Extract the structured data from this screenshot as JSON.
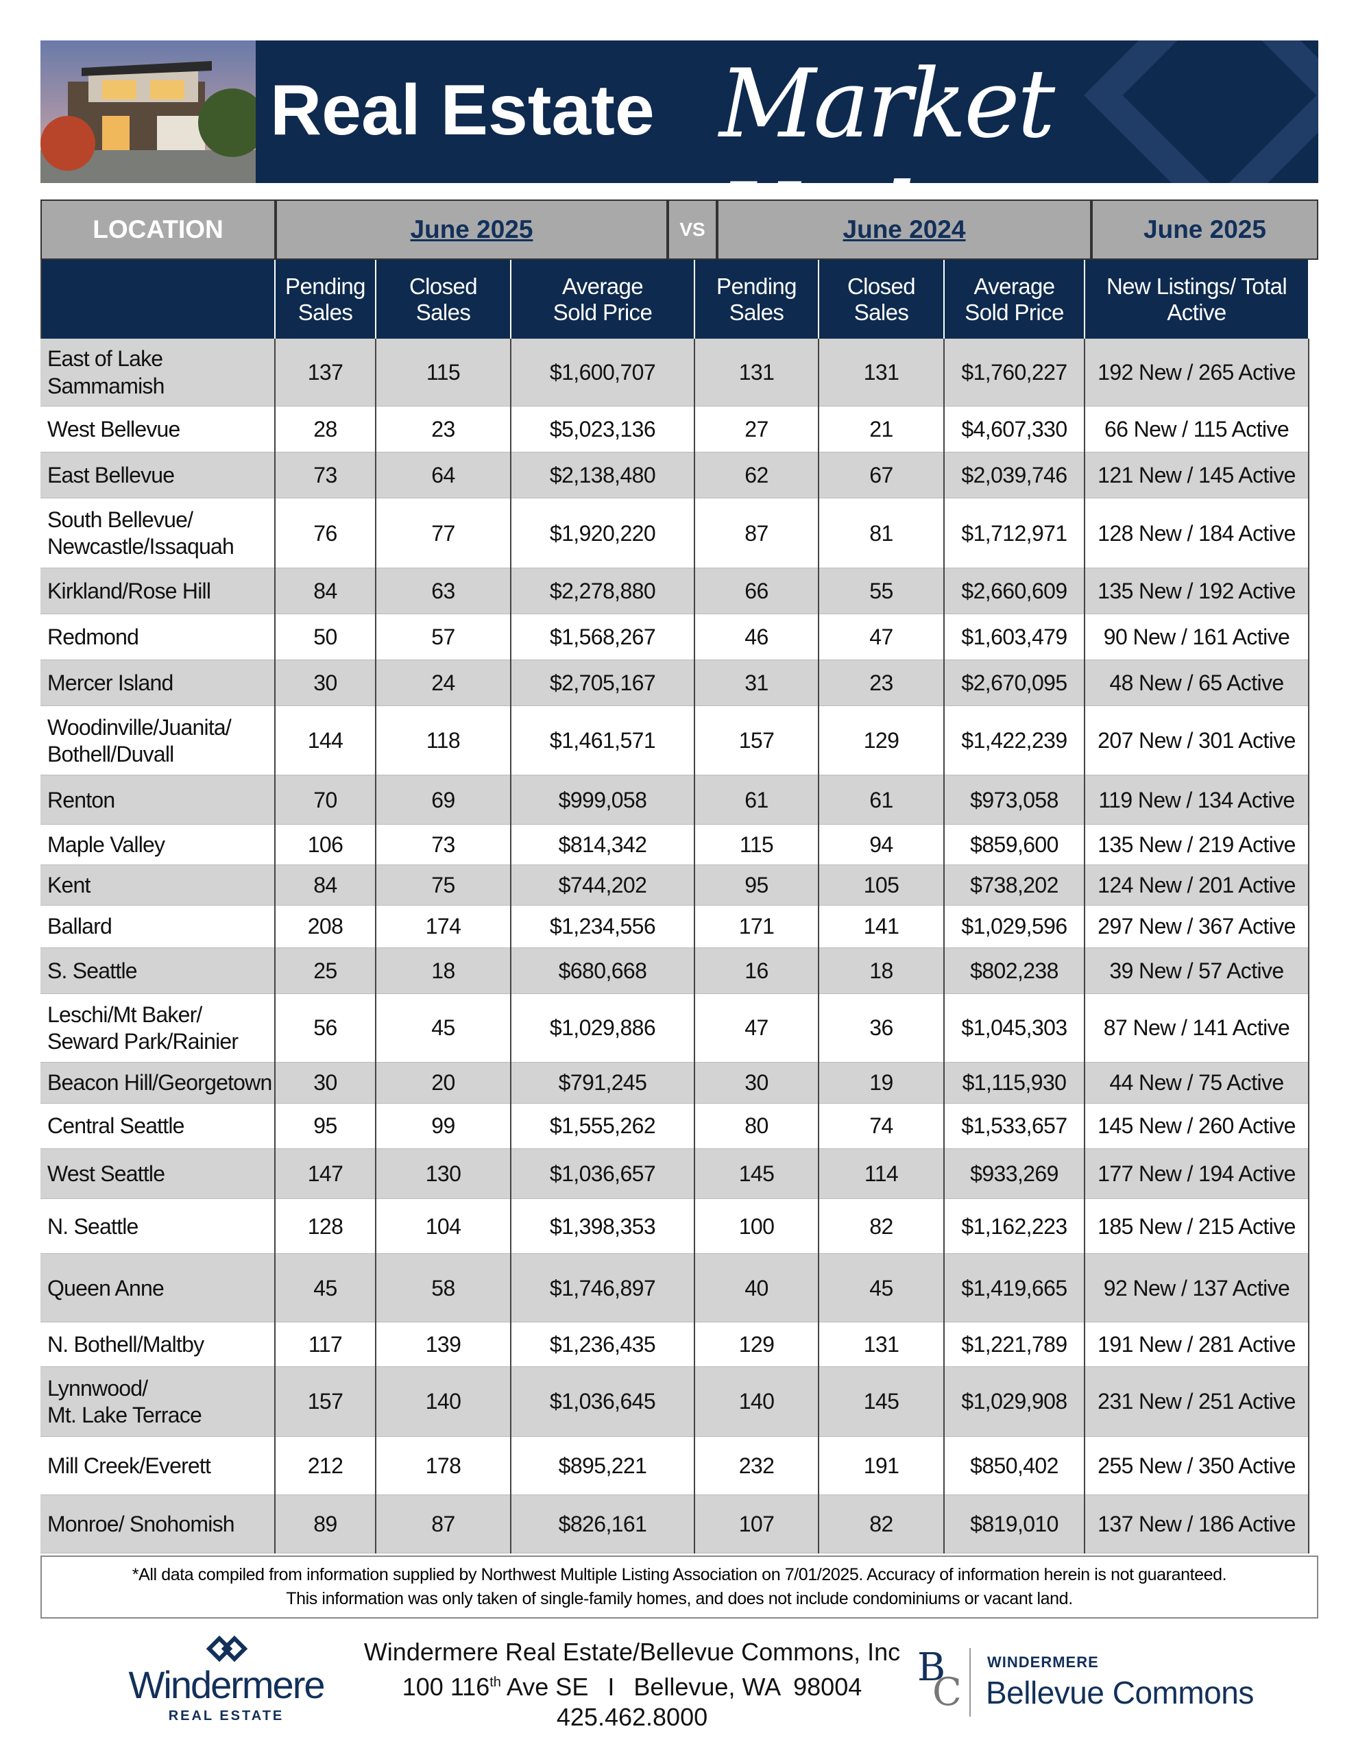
{
  "header": {
    "title": "Real Estate",
    "script_title": "Market Update"
  },
  "table": {
    "group_headers": [
      "LOCATION",
      "June 2025",
      "VS",
      "June 2024",
      "June 2025"
    ],
    "column_headers": [
      "",
      "Pending\nSales",
      "Closed\nSales",
      "Average\nSold Price",
      "Pending\nSales",
      "Closed\nSales",
      "Average\nSold Price",
      "New Listings/ Total\nActive"
    ],
    "rows": [
      [
        "East of Lake\nSammamish",
        137,
        115,
        "$1,600,707",
        131,
        131,
        "$1,760,227",
        "192 New / 265 Active"
      ],
      [
        "West Bellevue",
        28,
        23,
        "$5,023,136",
        27,
        21,
        "$4,607,330",
        "66 New / 115 Active"
      ],
      [
        "East Bellevue",
        73,
        64,
        "$2,138,480",
        62,
        67,
        "$2,039,746",
        "121 New / 145 Active"
      ],
      [
        "South Bellevue/\nNewcastle/Issaquah",
        76,
        77,
        "$1,920,220",
        87,
        81,
        "$1,712,971",
        "128 New / 184 Active"
      ],
      [
        "Kirkland/Rose Hill",
        84,
        63,
        "$2,278,880",
        66,
        55,
        "$2,660,609",
        "135 New / 192 Active"
      ],
      [
        "Redmond",
        50,
        57,
        "$1,568,267",
        46,
        47,
        "$1,603,479",
        "90 New / 161 Active"
      ],
      [
        "Mercer Island",
        30,
        24,
        "$2,705,167",
        31,
        23,
        "$2,670,095",
        "48 New / 65 Active"
      ],
      [
        "Woodinville/Juanita/\nBothell/Duvall",
        144,
        118,
        "$1,461,571",
        157,
        129,
        "$1,422,239",
        "207 New / 301 Active"
      ],
      [
        "Renton",
        70,
        69,
        "$999,058",
        61,
        61,
        "$973,058",
        "119 New / 134 Active"
      ],
      [
        "Maple Valley",
        106,
        73,
        "$814,342",
        115,
        94,
        "$859,600",
        "135 New / 219 Active"
      ],
      [
        "Kent",
        84,
        75,
        "$744,202",
        95,
        105,
        "$738,202",
        "124 New / 201 Active"
      ],
      [
        "Ballard",
        208,
        174,
        "$1,234,556",
        171,
        141,
        "$1,029,596",
        "297 New / 367 Active"
      ],
      [
        "S. Seattle",
        25,
        18,
        "$680,668",
        16,
        18,
        "$802,238",
        "39 New / 57 Active"
      ],
      [
        "Leschi/Mt Baker/\nSeward Park/Rainier",
        56,
        45,
        "$1,029,886",
        47,
        36,
        "$1,045,303",
        "87 New / 141 Active"
      ],
      [
        "Beacon Hill/Georgetown",
        30,
        20,
        "$791,245",
        30,
        19,
        "$1,115,930",
        "44 New / 75 Active"
      ],
      [
        "Central Seattle",
        95,
        99,
        "$1,555,262",
        80,
        74,
        "$1,533,657",
        "145 New / 260 Active"
      ],
      [
        "West Seattle",
        147,
        130,
        "$1,036,657",
        145,
        114,
        "$933,269",
        "177 New / 194 Active"
      ],
      [
        "N. Seattle",
        128,
        104,
        "$1,398,353",
        100,
        82,
        "$1,162,223",
        "185 New / 215 Active"
      ],
      [
        "Queen Anne",
        45,
        58,
        "$1,746,897",
        40,
        45,
        "$1,419,665",
        "92 New / 137 Active"
      ],
      [
        "N. Bothell/Maltby",
        117,
        139,
        "$1,236,435",
        129,
        131,
        "$1,221,789",
        "191 New / 281 Active"
      ],
      [
        "Lynnwood/\nMt. Lake Terrace",
        157,
        140,
        "$1,036,645",
        140,
        145,
        "$1,029,908",
        "231 New / 251 Active"
      ],
      [
        "Mill Creek/Everett",
        212,
        178,
        "$895,221",
        232,
        191,
        "$850,402",
        "255 New / 350 Active"
      ],
      [
        "Monroe/ Snohomish",
        89,
        87,
        "$826,161",
        107,
        82,
        "$819,010",
        "137 New / 186 Active"
      ]
    ]
  },
  "footnote": [
    "*All data compiled from information supplied by Northwest Multiple Listing Association on  7/01/2025.  Accuracy of information herein is not guaranteed.",
    "This information was only taken of single-family homes, and does not include condominiums or vacant land."
  ],
  "footer": {
    "logo_left": {
      "name": "Windermere",
      "tagline": "REAL ESTATE"
    },
    "address": {
      "company": "Windermere Real Estate/Bellevue Commons, Inc",
      "street_number": "100 116",
      "street_suffix": "th",
      "street_rest": " Ave SE",
      "separator": "I",
      "city": "Bellevue, WA  98004",
      "phone": "425.462.8000"
    },
    "logo_right": {
      "monogram_top": "B",
      "monogram_bottom": "C",
      "brand": "WINDERMERE",
      "office": "Bellevue Commons"
    }
  }
}
